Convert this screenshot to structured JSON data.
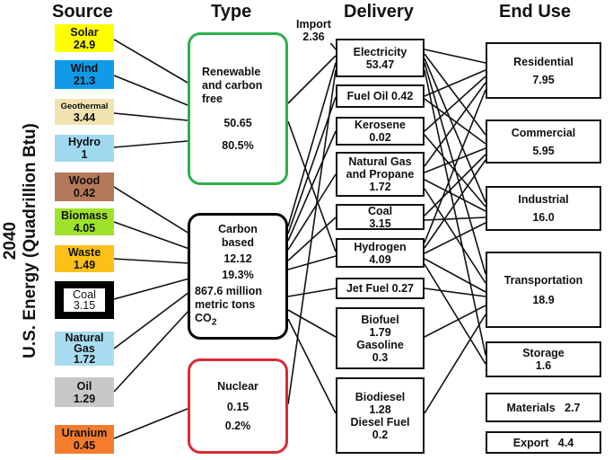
{
  "headers": {
    "source": "Source",
    "type": "Type",
    "delivery": "Delivery",
    "end_use": "End Use"
  },
  "y_label": {
    "year": "2040",
    "units": "U.S. Energy (Quadrillion Btu)"
  },
  "import": {
    "label": "Import",
    "value": "2.36"
  },
  "sources": [
    {
      "name": "Solar",
      "value": "24.9",
      "color": "#ffff00"
    },
    {
      "name": "Wind",
      "value": "21.3",
      "color": "#0f9be8"
    },
    {
      "name": "Geothermal",
      "value": "3.44",
      "color": "#f0e3b0"
    },
    {
      "name": "Hydro",
      "value": "1",
      "color": "#9fd8ef"
    },
    {
      "name": "Wood",
      "value": "0.42",
      "color": "#b4785a"
    },
    {
      "name": "Biomass",
      "value": "4.05",
      "color": "#9ee22b"
    },
    {
      "name": "Waste",
      "value": "1.49",
      "color": "#fbc116"
    },
    {
      "name": "Coal",
      "value": "3.15",
      "color": "#000000"
    },
    {
      "name": "Natural Gas",
      "value": "1.72",
      "color": "#a8dcf0"
    },
    {
      "name": "Oil",
      "value": "1.29",
      "color": "#c8c8c8"
    },
    {
      "name": "Uranium",
      "value": "0.45",
      "color": "#f47c2c"
    }
  ],
  "types": {
    "renewable": {
      "label": "Renewable and carbon free",
      "value": "50.65",
      "percent": "80.5%",
      "color": "#2db04b"
    },
    "carbon": {
      "label": "Carbon based",
      "value": "12.12",
      "percent": "19.3%",
      "emissions": "867.6  million metric tons",
      "co2": "CO",
      "co2_sub": "2",
      "color": "#000000"
    },
    "nuclear": {
      "label": "Nuclear",
      "value": "0.15",
      "percent": "0.2%",
      "color": "#d92b35"
    }
  },
  "delivery": {
    "electricity": {
      "label": "Electricity",
      "value": "53.47"
    },
    "fuel_oil": {
      "label": "Fuel Oil 0.42"
    },
    "kerosene": {
      "label": "Kerosene",
      "value": "0.02"
    },
    "natural_gas": {
      "label": "Natural Gas and Propane",
      "value": "1.72"
    },
    "coal": {
      "label": "Coal",
      "value": "3.15"
    },
    "hydrogen": {
      "label": "Hydrogen",
      "value": "4.09"
    },
    "jet_fuel": {
      "label": "Jet Fuel 0.27"
    },
    "biofuel": {
      "label": "Biofuel",
      "value": "1.79",
      "label2": "Gasoline",
      "value2": "0.3"
    },
    "biodiesel": {
      "label": "Biodiesel",
      "value": "1.28",
      "label2": "Diesel Fuel",
      "value2": "0.2"
    }
  },
  "end_use": {
    "residential": {
      "label": "Residential",
      "value": "7.95"
    },
    "commercial": {
      "label": "Commercial",
      "value": "5.95"
    },
    "industrial": {
      "label": "Industrial",
      "value": "16.0"
    },
    "transportation": {
      "label": "Transportation",
      "value": "18.9"
    },
    "storage": {
      "label": "Storage",
      "value": "1.6"
    },
    "materials": {
      "label": "Materials   2.7"
    },
    "export": {
      "label": "Export   4.4"
    }
  }
}
